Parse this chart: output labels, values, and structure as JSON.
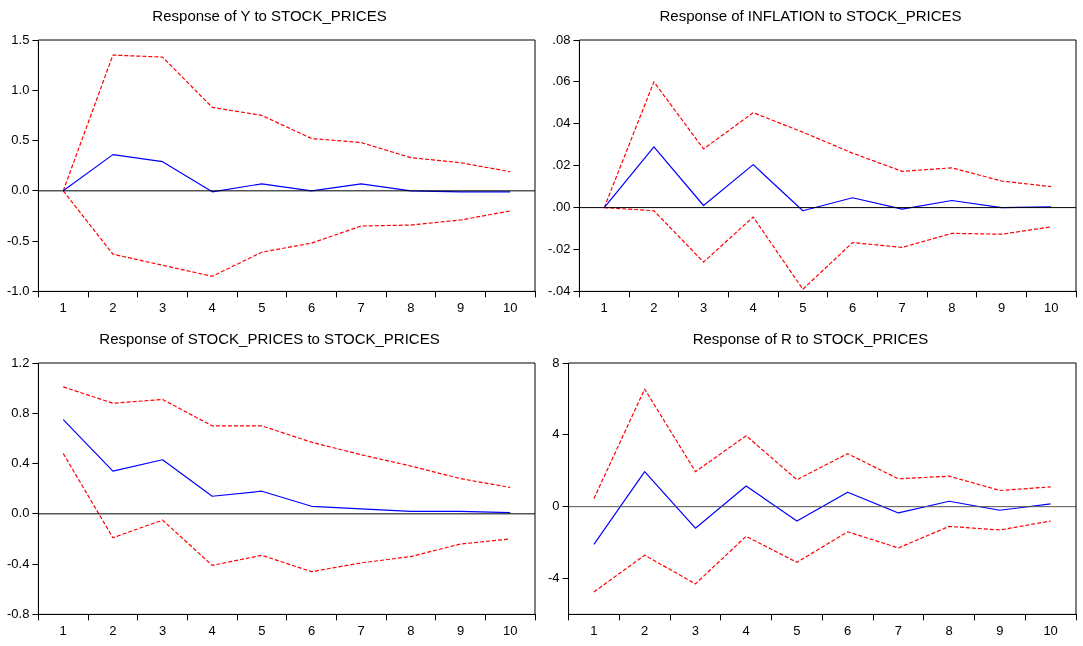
{
  "chart_data": [
    {
      "type": "line",
      "title": "Response of Y to STOCK_PRICES",
      "categories": [
        "1",
        "2",
        "3",
        "4",
        "5",
        "6",
        "7",
        "8",
        "9",
        "10"
      ],
      "ylim": [
        -1,
        1.5
      ],
      "yticks": [
        {
          "value": -1,
          "label": "-1.0"
        },
        -0.5,
        {
          "value": 0,
          "label": "0.0"
        },
        0.5,
        {
          "value": 1,
          "label": "1.0"
        },
        1.5
      ],
      "grid": false,
      "legend": false,
      "marker": "none",
      "ref_lines": [
        {
          "axis": "y",
          "value": 0,
          "color": "#000000"
        }
      ],
      "series": [
        {
          "color": "#0000ff",
          "line_style": "solid",
          "values": [
            0,
            0.36,
            0.29,
            -0.01,
            0.07,
            0,
            0.07,
            0,
            -0.01,
            -0.01
          ]
        },
        {
          "color": "#ff0000",
          "line_style": "dashed",
          "values": [
            0,
            1.35,
            1.33,
            0.83,
            0.75,
            0.52,
            0.48,
            0.33,
            0.28,
            0.19
          ]
        },
        {
          "color": "#ff0000",
          "line_style": "dashed",
          "values": [
            0,
            -0.63,
            -0.74,
            -0.85,
            -0.61,
            -0.52,
            -0.35,
            -0.34,
            -0.29,
            -0.2
          ]
        }
      ]
    },
    {
      "type": "line",
      "title": "Response of INFLATION to STOCK_PRICES",
      "categories": [
        "1",
        "2",
        "3",
        "4",
        "5",
        "6",
        "7",
        "8",
        "9",
        "10"
      ],
      "ylim": [
        -0.04,
        0.08
      ],
      "yticks": [
        {
          "value": -0.04,
          "label": "-.04"
        },
        {
          "value": -0.02,
          "label": "-.02"
        },
        {
          "value": 0,
          "label": ".00"
        },
        {
          "value": 0.02,
          "label": ".02"
        },
        {
          "value": 0.04,
          "label": ".04"
        },
        {
          "value": 0.06,
          "label": ".06"
        },
        {
          "value": 0.08,
          "label": ".08"
        }
      ],
      "grid": false,
      "legend": false,
      "marker": "none",
      "ref_lines": [
        {
          "axis": "y",
          "value": 0,
          "color": "#000000"
        }
      ],
      "series": [
        {
          "color": "#0000ff",
          "line_style": "solid",
          "values": [
            0,
            0.029,
            0.001,
            0.0205,
            -0.0015,
            0.0047,
            -0.0007,
            0.0034,
            0,
            0.0004
          ]
        },
        {
          "color": "#ff0000",
          "line_style": "dashed",
          "values": [
            0,
            0.06,
            0.028,
            0.0453,
            0.036,
            0.026,
            0.0173,
            0.019,
            0.0127,
            0.01
          ]
        },
        {
          "color": "#ff0000",
          "line_style": "dashed",
          "values": [
            0,
            -0.0015,
            -0.026,
            -0.0045,
            -0.039,
            -0.0167,
            -0.019,
            -0.0123,
            -0.0127,
            -0.0092
          ]
        }
      ]
    },
    {
      "type": "line",
      "title": "Response of STOCK_PRICES to STOCK_PRICES",
      "categories": [
        "1",
        "2",
        "3",
        "4",
        "5",
        "6",
        "7",
        "8",
        "9",
        "10"
      ],
      "ylim": [
        -0.8,
        1.2
      ],
      "yticks": [
        -0.8,
        -0.4,
        {
          "value": 0,
          "label": "0.0"
        },
        0.4,
        0.8,
        1.2
      ],
      "grid": false,
      "legend": false,
      "marker": "none",
      "ref_lines": [
        {
          "axis": "y",
          "value": 0,
          "color": "#000000"
        }
      ],
      "series": [
        {
          "color": "#0000ff",
          "line_style": "solid",
          "values": [
            0.75,
            0.34,
            0.43,
            0.14,
            0.18,
            0.06,
            0.04,
            0.02,
            0.02,
            0.01
          ]
        },
        {
          "color": "#ff0000",
          "line_style": "dashed",
          "values": [
            1.01,
            0.88,
            0.91,
            0.7,
            0.7,
            0.57,
            0.47,
            0.38,
            0.28,
            0.21
          ]
        },
        {
          "color": "#ff0000",
          "line_style": "dashed",
          "values": [
            0.48,
            -0.19,
            -0.05,
            -0.41,
            -0.33,
            -0.46,
            -0.39,
            -0.34,
            -0.24,
            -0.2
          ]
        }
      ]
    },
    {
      "type": "line",
      "title": "Response of R to STOCK_PRICES",
      "categories": [
        "1",
        "2",
        "3",
        "4",
        "5",
        "6",
        "7",
        "8",
        "9",
        "10"
      ],
      "ylim": [
        -6,
        8
      ],
      "yticks": [
        -4,
        0,
        4,
        8
      ],
      "grid": false,
      "legend": false,
      "marker": "none",
      "ref_lines": [
        {
          "axis": "y",
          "value": 0,
          "color": "#555555"
        }
      ],
      "series": [
        {
          "color": "#0000ff",
          "line_style": "solid",
          "values": [
            -2.1,
            1.95,
            -1.2,
            1.15,
            -0.8,
            0.8,
            -0.35,
            0.3,
            -0.2,
            0.15
          ]
        },
        {
          "color": "#ff0000",
          "line_style": "dashed",
          "values": [
            0.45,
            6.55,
            1.95,
            3.95,
            1.5,
            2.95,
            1.55,
            1.7,
            0.9,
            1.1
          ]
        },
        {
          "color": "#ff0000",
          "line_style": "dashed",
          "values": [
            -4.75,
            -2.7,
            -4.3,
            -1.65,
            -3.1,
            -1.4,
            -2.3,
            -1.1,
            -1.3,
            -0.8
          ]
        }
      ]
    }
  ]
}
